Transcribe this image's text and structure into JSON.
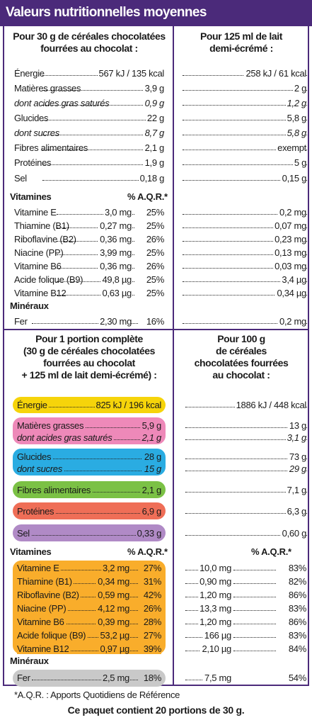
{
  "title": "Valeurs nutritionnelles moyennes",
  "headers": {
    "cereal": [
      "Pour 30 g de céréales chocolatées",
      "fourrées au chocolat :"
    ],
    "milk": [
      "Pour 125 ml de lait",
      "demi-écrémé :"
    ],
    "portion": [
      "Pour 1 portion complète",
      "(30 g de céréales chocolatées",
      "fourrées au chocolat",
      "+ 125 ml de lait demi-écrémé) :"
    ],
    "per100": [
      "Pour 100 g",
      "de céréales",
      "chocolatées fourrées",
      "au chocolat :"
    ]
  },
  "colors": {
    "header": "#4b2a7a",
    "energie": "#f6d40a",
    "graisses": "#ee89b9",
    "glucides": "#2aace2",
    "fibres": "#7bc145",
    "proteines": "#ef6e57",
    "sel": "#b08ac6",
    "vitamines": "#f9ad2b",
    "fer": "#c9c9c9"
  },
  "sections": {
    "vitamines": "Vitamines",
    "aqr": "% A.Q.R.*",
    "mineraux": "Minéraux"
  },
  "top_rows": [
    {
      "label": "Énergie",
      "cereal": "567 kJ / 135 kcal",
      "milk": "258 kJ / 61 kcal"
    },
    {
      "label": "Matières grasses",
      "cereal": "3,9 g",
      "milk": "2 g"
    },
    {
      "label": "dont acides gras saturés",
      "cereal": "0,9 g",
      "milk": "1,2 g"
    },
    {
      "label": "Glucides",
      "cereal": "22 g",
      "milk": "5,8 g"
    },
    {
      "label": "dont sucres",
      "cereal": "8,7 g",
      "milk": "5,8 g"
    },
    {
      "label": "Fibres alimentaires",
      "cereal": "2,1 g",
      "milk": "exempt"
    },
    {
      "label": "Protéines",
      "cereal": "1,9 g",
      "milk": "5 g"
    },
    {
      "label": "Sel",
      "cereal": "0,18 g",
      "milk": "0,15 g"
    }
  ],
  "top_vitamins": [
    {
      "label": "Vitamine E",
      "cereal": "3,0 mg",
      "pct": "25%",
      "milk": "0,2 mg"
    },
    {
      "label": "Thiamine (B1)",
      "cereal": "0,27 mg",
      "pct": "25%",
      "milk": "0,07 mg"
    },
    {
      "label": "Riboflavine (B2)",
      "cereal": "0,36 mg",
      "pct": "26%",
      "milk": "0,23 mg"
    },
    {
      "label": "Niacine (PP)",
      "cereal": "3,99 mg",
      "pct": "25%",
      "milk": "0,13 mg"
    },
    {
      "label": "Vitamine B6",
      "cereal": "0,36 mg",
      "pct": "26%",
      "milk": "0,03 mg"
    },
    {
      "label": "Acide folique (B9)",
      "cereal": "49,8 µg",
      "pct": "25%",
      "milk": "3,4 µg"
    },
    {
      "label": "Vitamine B12",
      "cereal": "0,63 µg",
      "pct": "25%",
      "milk": "0,34 µg"
    }
  ],
  "top_fer": {
    "label": "Fer",
    "cereal": "2,30 mg",
    "pct": "16%",
    "milk": "0,2 mg"
  },
  "bottom_rows": [
    {
      "label": "Énergie",
      "portion": "825 kJ / 196 kcal",
      "per100": "1886 kJ / 448 kcal"
    },
    {
      "label": "Matières grasses",
      "portion": "5,9 g",
      "per100": "13 g"
    },
    {
      "label": "dont acides gras saturés",
      "portion": "2,1 g",
      "per100": "3,1 g"
    },
    {
      "label": "Glucides",
      "portion": "28 g",
      "per100": "73 g"
    },
    {
      "label": "dont sucres",
      "portion": "15 g",
      "per100": "29 g"
    },
    {
      "label": "Fibres alimentaires",
      "portion": "2,1 g",
      "per100": "7,1 g"
    },
    {
      "label": "Protéines",
      "portion": "6,9 g",
      "per100": "6,3 g"
    },
    {
      "label": "Sel",
      "portion": "0,33 g",
      "per100": "0,60 g"
    }
  ],
  "bottom_vitamins": [
    {
      "label": "Vitamine E",
      "portion": "3,2 mg",
      "pct": "27%",
      "per100": "10,0 mg",
      "pct100": "83%"
    },
    {
      "label": "Thiamine (B1)",
      "portion": "0,34 mg",
      "pct": "31%",
      "per100": "0,90 mg",
      "pct100": "82%"
    },
    {
      "label": "Riboflavine (B2)",
      "portion": "0,59 mg",
      "pct": "42%",
      "per100": "1,20 mg",
      "pct100": "86%"
    },
    {
      "label": "Niacine (PP)",
      "portion": "4,12 mg",
      "pct": "26%",
      "per100": "13,3 mg",
      "pct100": "83%"
    },
    {
      "label": "Vitamine B6",
      "portion": "0,39 mg",
      "pct": "28%",
      "per100": "1,20 mg",
      "pct100": "86%"
    },
    {
      "label": "Acide folique (B9)",
      "portion": "53,2 µg",
      "pct": "27%",
      "per100": "166 µg",
      "pct100": "83%"
    },
    {
      "label": "Vitamine B12",
      "portion": "0,97 µg",
      "pct": "39%",
      "per100": "2,10 µg",
      "pct100": "84%"
    }
  ],
  "bottom_fer": {
    "label": "Fer",
    "portion": "2,5 mg",
    "pct": "18%",
    "per100": "7,5 mg",
    "pct100": "54%"
  },
  "footnote": "*A.Q.R. : Apports Quotidiens de Référence",
  "footer": "Ce paquet contient 20 portions de 30 g."
}
